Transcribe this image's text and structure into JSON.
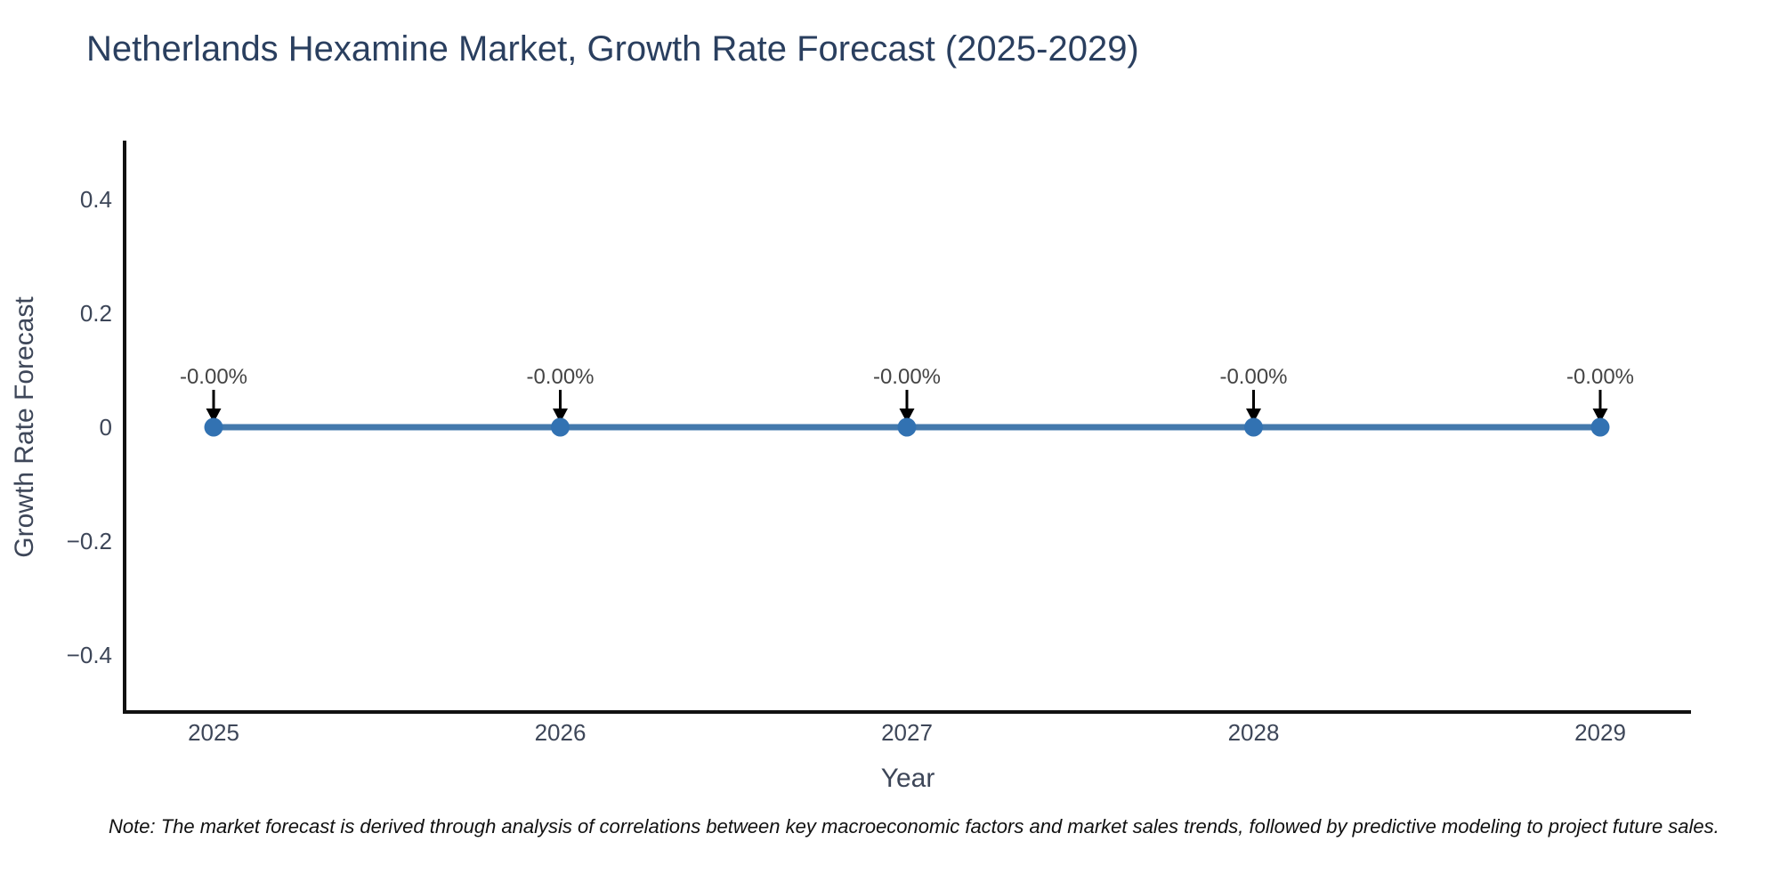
{
  "title": "Netherlands Hexamine Market, Growth Rate Forecast (2025-2029)",
  "note": "Note: The market forecast is derived through analysis of correlations between key macroeconomic factors and market sales trends, followed by predictive modeling to project future sales.",
  "chart_data": {
    "type": "line",
    "title": "Netherlands Hexamine Market, Growth Rate Forecast (2025-2029)",
    "xlabel": "Year",
    "ylabel": "Growth Rate Forecast",
    "categories": [
      "2025",
      "2026",
      "2027",
      "2028",
      "2029"
    ],
    "series": [
      {
        "name": "Growth Rate Forecast",
        "values": [
          0,
          0,
          0,
          0,
          0
        ]
      }
    ],
    "point_labels": [
      "-0.00%",
      "-0.00%",
      "-0.00%",
      "-0.00%",
      "-0.00%"
    ],
    "yticks": [
      0.4,
      0.2,
      0,
      -0.2,
      -0.4
    ],
    "ytick_labels": [
      "0.4",
      "0.2",
      "0",
      "−0.2",
      "−0.4"
    ],
    "ylim": [
      -0.5,
      0.5
    ],
    "grid": false,
    "legend": false,
    "annotations_have_arrows": true,
    "colors": {
      "line": "#4379ad",
      "marker": "#3272b2",
      "axis": "#111111",
      "tick_text": "#3d4658",
      "title_text": "#2a3f5f",
      "annotation_text": "#444444",
      "arrow": "#000000"
    }
  }
}
